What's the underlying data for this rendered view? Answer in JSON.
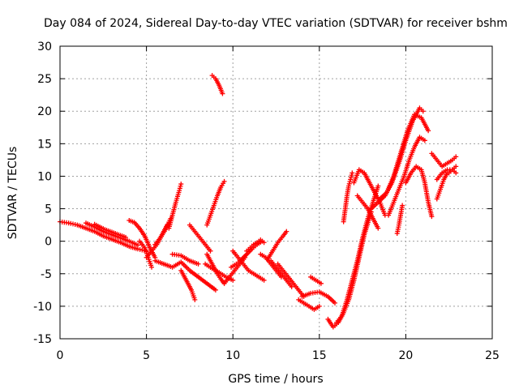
{
  "chart_data": {
    "type": "scatter",
    "title": "Day 084 of 2024, Sidereal Day-to-day VTEC variation (SDTVAR) for receiver bshm",
    "xlabel": "GPS time / hours",
    "ylabel": "SDTVAR / TECUs",
    "xlim": [
      0,
      25
    ],
    "ylim": [
      -15,
      30
    ],
    "xticks": [
      0,
      5,
      10,
      15,
      20,
      25
    ],
    "yticks": [
      -15,
      -10,
      -5,
      0,
      5,
      10,
      15,
      20,
      25,
      30
    ],
    "grid": true,
    "marker": "+",
    "color": "#ff0000",
    "series": [
      {
        "name": "s1",
        "x": [
          0.0,
          0.5,
          1.0,
          1.5,
          2.0,
          2.5,
          3.0,
          3.5,
          4.0,
          4.5,
          5.0
        ],
        "y": [
          3.0,
          2.8,
          2.5,
          2.0,
          1.5,
          0.8,
          0.3,
          -0.2,
          -0.8,
          -1.2,
          -1.5
        ]
      },
      {
        "name": "s2",
        "x": [
          1.5,
          2.0,
          2.5,
          3.0,
          3.5,
          4.0,
          4.5
        ],
        "y": [
          2.8,
          2.2,
          1.5,
          1.0,
          0.5,
          0.0,
          -0.6
        ]
      },
      {
        "name": "s3",
        "x": [
          2.0,
          2.6,
          3.2,
          3.8
        ],
        "y": [
          2.6,
          1.8,
          1.2,
          0.6
        ]
      },
      {
        "name": "s4",
        "x": [
          4.0,
          4.3,
          4.6,
          4.9,
          5.2,
          5.5
        ],
        "y": [
          3.2,
          2.9,
          2.0,
          0.8,
          -1.0,
          -2.5
        ]
      },
      {
        "name": "s5",
        "x": [
          4.6,
          4.9,
          5.1,
          5.3
        ],
        "y": [
          0.0,
          -1.0,
          -2.5,
          -4.0
        ]
      },
      {
        "name": "s6",
        "x": [
          5.5,
          5.8,
          6.1,
          6.4
        ],
        "y": [
          -0.5,
          0.5,
          1.8,
          3.5
        ]
      },
      {
        "name": "s7",
        "x": [
          5.0,
          5.3,
          5.6,
          5.9,
          6.2
        ],
        "y": [
          -2.5,
          -1.5,
          -0.5,
          1.0,
          2.5
        ]
      },
      {
        "name": "s8",
        "x": [
          6.3,
          6.5,
          6.7,
          6.9,
          7.0
        ],
        "y": [
          2.0,
          4.0,
          6.0,
          7.8,
          8.8
        ]
      },
      {
        "name": "s9",
        "x": [
          5.5,
          6.0,
          6.5,
          7.0,
          7.5,
          8.0,
          8.5,
          9.0
        ],
        "y": [
          -3.0,
          -3.5,
          -4.0,
          -3.2,
          -4.5,
          -5.5,
          -6.5,
          -7.5
        ]
      },
      {
        "name": "s10",
        "x": [
          6.5,
          7.0,
          7.5,
          8.0
        ],
        "y": [
          -2.0,
          -2.2,
          -3.0,
          -3.5
        ]
      },
      {
        "name": "s11",
        "x": [
          7.0,
          7.2,
          7.4,
          7.6,
          7.8
        ],
        "y": [
          -4.5,
          -5.5,
          -6.5,
          -7.5,
          -9.0
        ]
      },
      {
        "name": "s12",
        "x": [
          7.5,
          7.8,
          8.1,
          8.4,
          8.7
        ],
        "y": [
          2.5,
          1.5,
          0.5,
          -0.5,
          -1.5
        ]
      },
      {
        "name": "s13",
        "x": [
          8.5,
          8.7,
          8.9,
          9.1,
          9.3,
          9.5
        ],
        "y": [
          -2.0,
          -3.0,
          -4.0,
          -5.0,
          -5.8,
          -6.5
        ]
      },
      {
        "name": "s14",
        "x": [
          8.4,
          8.8,
          9.2,
          9.6,
          10.0
        ],
        "y": [
          -3.5,
          -4.2,
          -4.8,
          -5.5,
          -6.0
        ]
      },
      {
        "name": "s15",
        "x": [
          8.8,
          9.0,
          9.2,
          9.4
        ],
        "y": [
          25.5,
          25.0,
          24.0,
          22.7
        ]
      },
      {
        "name": "s16",
        "x": [
          8.5,
          8.7,
          8.9,
          9.1,
          9.3,
          9.5
        ],
        "y": [
          2.5,
          4.0,
          5.5,
          7.0,
          8.3,
          9.2
        ]
      },
      {
        "name": "s17",
        "x": [
          9.5,
          9.8,
          10.1,
          10.4,
          10.7
        ],
        "y": [
          -6.5,
          -5.5,
          -4.5,
          -3.5,
          -2.5
        ]
      },
      {
        "name": "s18",
        "x": [
          10.0,
          10.3,
          10.6,
          10.9,
          11.2,
          11.5,
          11.8
        ],
        "y": [
          -1.5,
          -2.5,
          -3.5,
          -4.5,
          -5.0,
          -5.5,
          -6.0
        ]
      },
      {
        "name": "s19",
        "x": [
          10.8,
          11.0,
          11.2,
          11.4,
          11.6,
          11.8
        ],
        "y": [
          -1.5,
          -1.0,
          -0.5,
          -0.2,
          0.2,
          -0.2
        ]
      },
      {
        "name": "s20",
        "x": [
          9.9,
          10.2,
          10.5,
          10.8,
          11.1,
          11.4,
          11.7
        ],
        "y": [
          -4.0,
          -3.5,
          -2.8,
          -2.0,
          -1.2,
          -0.5,
          0.0
        ]
      },
      {
        "name": "s21",
        "x": [
          11.6,
          11.9,
          12.2,
          12.5,
          12.8
        ],
        "y": [
          -2.0,
          -2.5,
          -3.5,
          -4.5,
          -5.5
        ]
      },
      {
        "name": "s22",
        "x": [
          12.2,
          12.5,
          12.8,
          13.1,
          13.4
        ],
        "y": [
          -3.0,
          -4.0,
          -5.0,
          -6.0,
          -7.0
        ]
      },
      {
        "name": "s23",
        "x": [
          12.0,
          12.3,
          12.6,
          12.9,
          13.1
        ],
        "y": [
          -2.8,
          -1.5,
          -0.2,
          0.8,
          1.5
        ]
      },
      {
        "name": "s24",
        "x": [
          12.6,
          12.9,
          13.2,
          13.5,
          13.8,
          14.1
        ],
        "y": [
          -3.5,
          -4.5,
          -5.5,
          -6.5,
          -7.5,
          -8.5
        ]
      },
      {
        "name": "s25",
        "x": [
          13.8,
          14.1,
          14.4,
          14.7,
          15.0
        ],
        "y": [
          -9.0,
          -9.5,
          -10.0,
          -10.5,
          -10.0
        ]
      },
      {
        "name": "s26",
        "x": [
          14.0,
          14.5,
          15.0,
          15.5,
          15.9
        ],
        "y": [
          -8.5,
          -8.0,
          -7.8,
          -8.5,
          -9.5
        ]
      },
      {
        "name": "s27",
        "x": [
          14.5,
          14.8,
          15.1
        ],
        "y": [
          -5.5,
          -6.0,
          -6.5
        ]
      },
      {
        "name": "s28",
        "x": [
          15.5,
          15.8,
          16.1,
          16.4,
          16.7,
          17.0,
          17.3,
          17.6,
          18.0
        ],
        "y": [
          -12.0,
          -13.2,
          -12.5,
          -11.0,
          -9.0,
          -6.0,
          -2.5,
          1.0,
          4.5
        ]
      },
      {
        "name": "s29",
        "x": [
          16.0,
          16.3,
          16.6,
          16.9,
          17.2,
          17.5,
          17.8,
          18.1,
          18.4
        ],
        "y": [
          -12.5,
          -11.5,
          -9.0,
          -6.0,
          -3.0,
          0.5,
          3.5,
          6.0,
          8.5
        ]
      },
      {
        "name": "s30",
        "x": [
          16.4,
          16.5,
          16.6,
          16.7,
          16.8,
          16.9
        ],
        "y": [
          3.0,
          5.0,
          7.0,
          8.5,
          9.5,
          10.5
        ]
      },
      {
        "name": "s31",
        "x": [
          17.0,
          17.3,
          17.6,
          17.9,
          18.2,
          18.5,
          18.8
        ],
        "y": [
          9.0,
          11.0,
          10.5,
          9.0,
          7.5,
          6.0,
          4.0
        ]
      },
      {
        "name": "s32",
        "x": [
          17.2,
          17.5,
          17.8,
          18.1,
          18.4
        ],
        "y": [
          7.0,
          6.0,
          5.0,
          3.5,
          2.0
        ]
      },
      {
        "name": "s33",
        "x": [
          18.0,
          18.4,
          18.8,
          19.2,
          19.6,
          20.0,
          20.4,
          20.8,
          21.0
        ],
        "y": [
          5.0,
          6.0,
          7.0,
          9.0,
          12.0,
          15.5,
          18.5,
          20.5,
          20.0
        ]
      },
      {
        "name": "s34",
        "x": [
          18.5,
          18.9,
          19.3,
          19.7,
          20.1,
          20.5,
          20.9,
          21.3
        ],
        "y": [
          6.5,
          7.5,
          10.0,
          13.5,
          17.0,
          19.5,
          19.0,
          17.0
        ]
      },
      {
        "name": "s35",
        "x": [
          19.0,
          19.3,
          19.6,
          19.9,
          20.2,
          20.5,
          20.8,
          21.1
        ],
        "y": [
          4.0,
          6.0,
          8.0,
          10.0,
          12.5,
          14.5,
          16.0,
          15.5
        ]
      },
      {
        "name": "s36",
        "x": [
          19.5,
          19.6,
          19.7,
          19.8
        ],
        "y": [
          1.2,
          2.5,
          4.0,
          5.5
        ]
      },
      {
        "name": "s37",
        "x": [
          20.0,
          20.3,
          20.6,
          20.9,
          21.1,
          21.3,
          21.5
        ],
        "y": [
          9.0,
          10.5,
          11.5,
          11.0,
          9.0,
          6.0,
          3.8
        ]
      },
      {
        "name": "s38",
        "x": [
          21.5,
          21.8,
          22.1,
          22.4,
          22.7,
          22.9
        ],
        "y": [
          13.5,
          12.5,
          11.5,
          12.0,
          12.5,
          13.0
        ]
      },
      {
        "name": "s39",
        "x": [
          21.8,
          22.1,
          22.4,
          22.7,
          22.9
        ],
        "y": [
          9.5,
          10.5,
          11.0,
          11.0,
          11.5
        ]
      },
      {
        "name": "s40",
        "x": [
          21.8,
          22.0,
          22.2,
          22.4
        ],
        "y": [
          6.5,
          8.0,
          9.5,
          10.5
        ]
      },
      {
        "name": "s41",
        "x": [
          22.5,
          22.7,
          22.9
        ],
        "y": [
          10.5,
          11.0,
          10.5
        ]
      }
    ]
  }
}
